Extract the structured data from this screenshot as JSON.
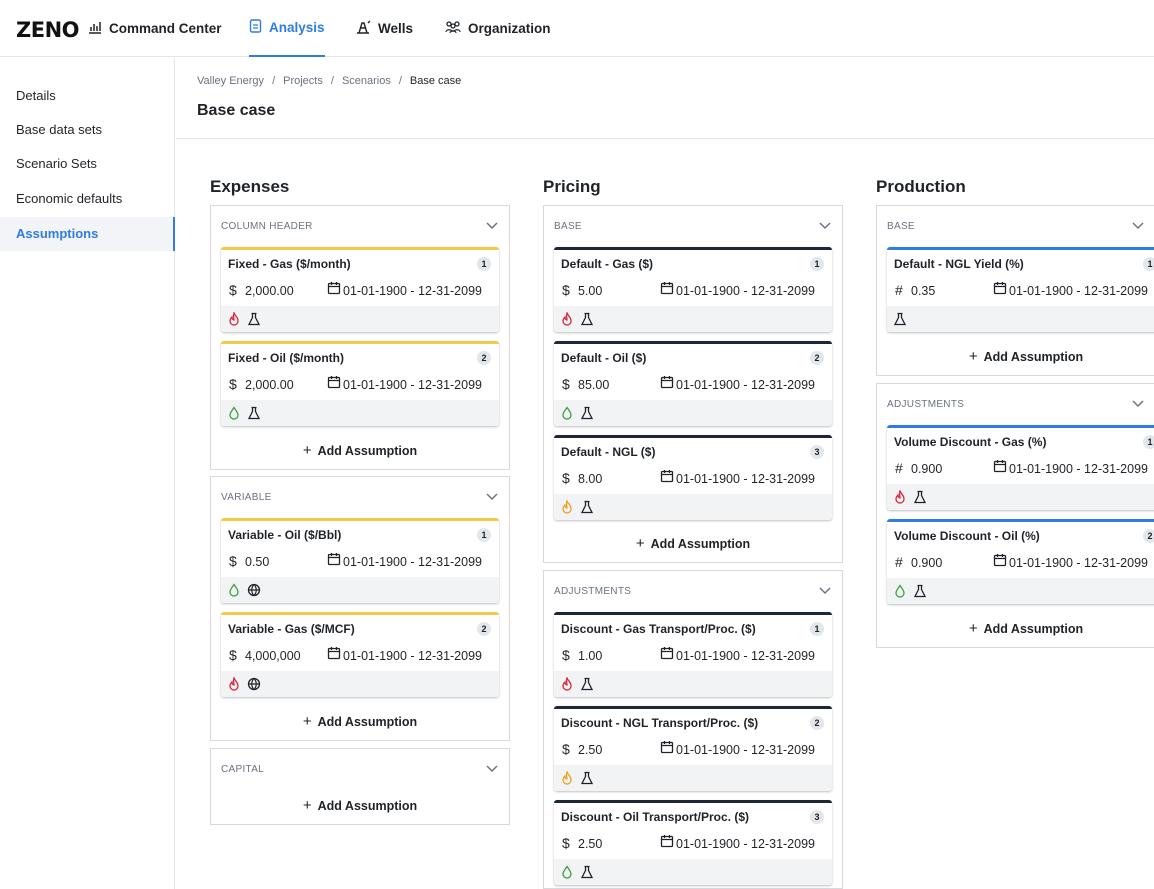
{
  "app": {
    "logo": "ZENO",
    "nav": [
      {
        "label": "Command Center",
        "icon": "chart-icon"
      },
      {
        "label": "Analysis",
        "icon": "document-icon",
        "active": true
      },
      {
        "label": "Wells",
        "icon": "well-icon"
      },
      {
        "label": "Organization",
        "icon": "people-icon"
      }
    ]
  },
  "sidebar": {
    "items": [
      {
        "label": "Details"
      },
      {
        "label": "Base data sets"
      },
      {
        "label": "Scenario Sets"
      },
      {
        "label": "Economic defaults"
      },
      {
        "label": "Assumptions",
        "active": true
      }
    ]
  },
  "breadcrumb": [
    "Valley Energy",
    "Projects",
    "Scenarios",
    "Base case"
  ],
  "page_title": "Base case",
  "add_label": "Add Assumption",
  "colors": {
    "accent": "#2f7de1",
    "yellow": "#f3c94a",
    "navy": "#1c2738",
    "gas_red": "#d7263d",
    "oil_green": "#3aa13a",
    "ngl_orange": "#f0a020"
  },
  "columns": [
    {
      "title": "Expenses",
      "sections": [
        {
          "label": "COLUMN HEADER",
          "cards": [
            {
              "title": "Fixed - Gas ($/month)",
              "badge": "1",
              "symbol": "$",
              "value": "2,000.00",
              "dates": "01-01-1900 - 12-31-2099",
              "icons": [
                "gas-flame-icon",
                "flask-icon"
              ]
            },
            {
              "title": "Fixed - Oil ($/month)",
              "badge": "2",
              "symbol": "$",
              "value": "2,000.00",
              "dates": "01-01-1900 - 12-31-2099",
              "icons": [
                "oil-drop-icon",
                "flask-icon"
              ]
            }
          ]
        },
        {
          "label": "VARIABLE",
          "cards": [
            {
              "title": "Variable - Oil ($/Bbl)",
              "badge": "1",
              "symbol": "$",
              "value": "0.50",
              "dates": "01-01-1900 - 12-31-2099",
              "icons": [
                "oil-drop-icon",
                "globe-icon"
              ]
            },
            {
              "title": "Variable - Gas ($/MCF)",
              "badge": "2",
              "symbol": "$",
              "value": "4,000,000",
              "dates": "01-01-1900 - 12-31-2099",
              "icons": [
                "gas-flame-icon",
                "globe-icon"
              ]
            }
          ]
        },
        {
          "label": "CAPITAL",
          "cards": []
        }
      ]
    },
    {
      "title": "Pricing",
      "sections": [
        {
          "label": "BASE",
          "cards": [
            {
              "title": "Default - Gas ($)",
              "badge": "1",
              "symbol": "$",
              "value": "5.00",
              "dates": "01-01-1900 - 12-31-2099",
              "icons": [
                "gas-flame-icon",
                "flask-icon"
              ]
            },
            {
              "title": "Default - Oil ($)",
              "badge": "2",
              "symbol": "$",
              "value": "85.00",
              "dates": "01-01-1900 - 12-31-2099",
              "icons": [
                "oil-drop-icon",
                "flask-icon"
              ]
            },
            {
              "title": "Default - NGL ($)",
              "badge": "3",
              "symbol": "$",
              "value": "8.00",
              "dates": "01-01-1900 - 12-31-2099",
              "icons": [
                "ngl-flame-icon",
                "flask-icon"
              ]
            }
          ]
        },
        {
          "label": "ADJUSTMENTS",
          "cards": [
            {
              "title": "Discount - Gas Transport/Proc. ($)",
              "badge": "1",
              "symbol": "$",
              "value": "1.00",
              "dates": "01-01-1900 - 12-31-2099",
              "icons": [
                "gas-flame-icon",
                "flask-icon"
              ]
            },
            {
              "title": "Discount - NGL Transport/Proc. ($)",
              "badge": "2",
              "symbol": "$",
              "value": "2.50",
              "dates": "01-01-1900 - 12-31-2099",
              "icons": [
                "ngl-flame-icon",
                "flask-icon"
              ]
            },
            {
              "title": "Discount - Oil Transport/Proc. ($)",
              "badge": "3",
              "symbol": "$",
              "value": "2.50",
              "dates": "01-01-1900 - 12-31-2099",
              "icons": [
                "oil-drop-icon",
                "flask-icon"
              ]
            }
          ]
        }
      ]
    },
    {
      "title": "Production",
      "sections": [
        {
          "label": "BASE",
          "cards": [
            {
              "title": "Default - NGL Yield (%)",
              "badge": "1",
              "symbol": "#",
              "value": "0.35",
              "dates": "01-01-1900 - 12-31-2099",
              "icons": [
                "flask-icon"
              ]
            }
          ]
        },
        {
          "label": "ADJUSTMENTS",
          "cards": [
            {
              "title": "Volume Discount - Gas (%)",
              "badge": "1",
              "symbol": "#",
              "value": "0.900",
              "dates": "01-01-1900 - 12-31-2099",
              "icons": [
                "gas-flame-icon",
                "flask-icon"
              ]
            },
            {
              "title": "Volume Discount - Oil (%)",
              "badge": "2",
              "symbol": "#",
              "value": "0.900",
              "dates": "01-01-1900 - 12-31-2099",
              "icons": [
                "oil-drop-icon",
                "flask-icon"
              ]
            }
          ]
        }
      ]
    }
  ]
}
